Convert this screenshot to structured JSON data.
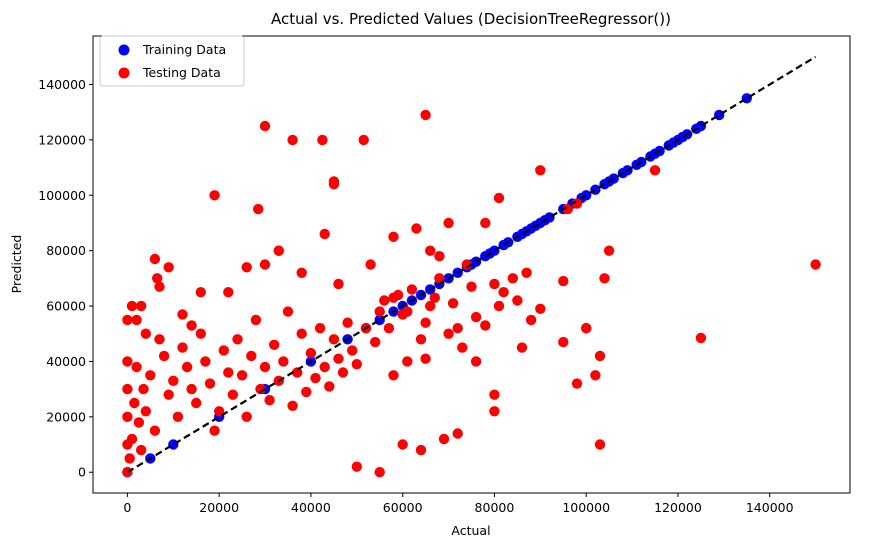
{
  "chart_data": {
    "type": "scatter",
    "title": "Actual vs. Predicted Values (DecisionTreeRegressor())",
    "xlabel": "Actual",
    "ylabel": "Predicted",
    "xlim": [
      -7500,
      157500
    ],
    "ylim": [
      -7500,
      157500
    ],
    "x_ticks": [
      0,
      20000,
      40000,
      60000,
      80000,
      100000,
      120000,
      140000
    ],
    "y_ticks": [
      0,
      20000,
      40000,
      60000,
      80000,
      100000,
      120000,
      140000
    ],
    "x_tick_labels": [
      "0",
      "20000",
      "40000",
      "60000",
      "80000",
      "100000",
      "120000",
      "140000"
    ],
    "y_tick_labels": [
      "0",
      "20000",
      "40000",
      "60000",
      "80000",
      "100000",
      "120000",
      "140000"
    ],
    "grid": false,
    "legend_position": "top-left",
    "reference_line": {
      "x": [
        0,
        150000
      ],
      "y": [
        0,
        150000
      ],
      "color": "#000000",
      "style": "dashed"
    },
    "series": [
      {
        "name": "Training Data",
        "color": "#0000ff",
        "x": [
          0,
          5000,
          10000,
          20000,
          30000,
          40000,
          48000,
          52000,
          55000,
          58000,
          60000,
          62000,
          64000,
          66000,
          68000,
          70000,
          72000,
          74000,
          75000,
          76000,
          78000,
          79000,
          80000,
          82000,
          83000,
          85000,
          86000,
          87000,
          88000,
          89000,
          90000,
          91000,
          92000,
          95000,
          97000,
          99000,
          100000,
          102000,
          104000,
          105000,
          106000,
          108000,
          109000,
          111000,
          112000,
          114000,
          115000,
          116000,
          118000,
          119000,
          120000,
          121000,
          122000,
          124000,
          125000,
          129000,
          135000
        ],
        "y": [
          0,
          5000,
          10000,
          20000,
          30000,
          40000,
          48000,
          52000,
          55000,
          58000,
          60000,
          62000,
          64000,
          66000,
          68000,
          70000,
          72000,
          74000,
          75000,
          76000,
          78000,
          79000,
          80000,
          82000,
          83000,
          85000,
          86000,
          87000,
          88000,
          89000,
          90000,
          91000,
          92000,
          95000,
          97000,
          99000,
          100000,
          102000,
          104000,
          105000,
          106000,
          108000,
          109000,
          111000,
          112000,
          114000,
          115000,
          116000,
          118000,
          119000,
          120000,
          121000,
          122000,
          124000,
          125000,
          129000,
          135000
        ]
      },
      {
        "name": "Testing Data",
        "color": "#ff0000",
        "x": [
          0,
          0,
          0,
          0,
          0,
          0,
          500,
          1000,
          1500,
          2000,
          2500,
          3000,
          3500,
          4000,
          5000,
          6000,
          6500,
          7000,
          8000,
          9000,
          10000,
          11000,
          12000,
          13000,
          14000,
          15000,
          16000,
          17000,
          18000,
          19000,
          20000,
          21000,
          22000,
          23000,
          24000,
          25000,
          26000,
          27000,
          28000,
          29000,
          30000,
          31000,
          32000,
          33000,
          34000,
          35000,
          36000,
          37000,
          38000,
          39000,
          40000,
          41000,
          42000,
          43000,
          44000,
          45000,
          46000,
          47000,
          48000,
          49000,
          50000,
          52000,
          54000,
          55000,
          57000,
          58000,
          60000,
          61000,
          62000,
          64000,
          65000,
          66000,
          68000,
          70000,
          72000,
          73000,
          75000,
          76000,
          78000,
          80000,
          81000,
          82000,
          85000,
          86000,
          87000,
          90000,
          95000,
          96000,
          98000,
          100000,
          102000,
          103000,
          105000,
          115000,
          125000,
          150000,
          19000,
          30000,
          36000,
          42500,
          51500,
          65000,
          45000,
          45000,
          43000,
          28500,
          33000,
          30000,
          90000,
          81000,
          78000,
          70000,
          63000,
          58000,
          66000,
          68000,
          74000,
          84000,
          88000,
          80000,
          98000,
          103000,
          104000,
          100000,
          95000,
          76000,
          60000,
          55000,
          50000,
          64000,
          69000,
          72000,
          80000,
          65000,
          58000,
          6000,
          3000,
          9000,
          12000,
          16000,
          1000,
          2000,
          4000,
          7000,
          14000,
          22000,
          26000,
          33000,
          38000,
          46000,
          53000,
          56000,
          59000,
          61000,
          67000,
          71000
        ],
        "y": [
          0,
          10000,
          20000,
          30000,
          40000,
          55000,
          5000,
          12000,
          25000,
          38000,
          18000,
          8000,
          30000,
          22000,
          35000,
          15000,
          70000,
          48000,
          42000,
          28000,
          33000,
          20000,
          45000,
          38000,
          30000,
          25000,
          50000,
          40000,
          32000,
          15000,
          22000,
          44000,
          36000,
          28000,
          48000,
          35000,
          20000,
          42000,
          55000,
          30000,
          38000,
          26000,
          46000,
          33000,
          40000,
          58000,
          24000,
          36000,
          50000,
          29000,
          43000,
          34000,
          52000,
          38000,
          31000,
          48000,
          41000,
          36000,
          54000,
          44000,
          39000,
          52000,
          47000,
          58000,
          52000,
          63000,
          57000,
          40000,
          66000,
          48000,
          54000,
          60000,
          70000,
          50000,
          52000,
          45000,
          67000,
          56000,
          53000,
          68000,
          60000,
          65000,
          62000,
          45000,
          72000,
          59000,
          69000,
          95000,
          32000,
          52000,
          35000,
          10000,
          80000,
          109000,
          48500,
          75000,
          100000,
          125000,
          120000,
          120000,
          120000,
          129000,
          105000,
          104000,
          86000,
          95000,
          80000,
          75000,
          109000,
          99000,
          90000,
          90000,
          88000,
          85000,
          80000,
          78000,
          75000,
          70000,
          55000,
          22000,
          97000,
          42000,
          70000,
          52000,
          47000,
          40000,
          10000,
          0,
          2000,
          8000,
          12000,
          14000,
          28000,
          41000,
          35000,
          77000,
          60000,
          74000,
          57000,
          65000,
          60000,
          55000,
          50000,
          67000,
          53000,
          65000,
          74000,
          80000,
          72000,
          68000,
          75000,
          62000,
          64000,
          58000,
          63000,
          61000
        ]
      }
    ]
  }
}
